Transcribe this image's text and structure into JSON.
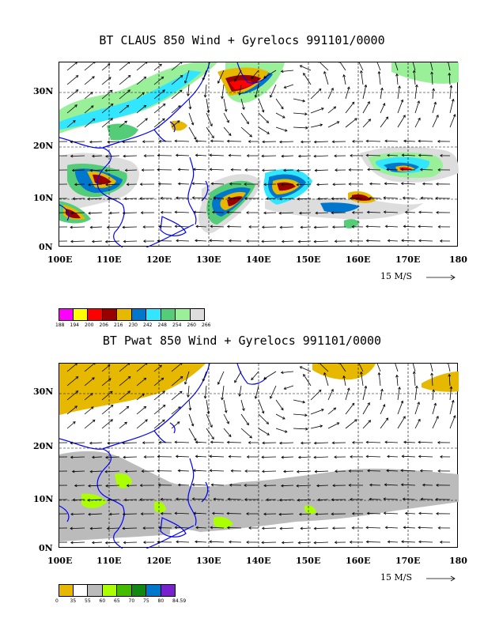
{
  "panel1": {
    "title": "BT CLAUS 850 Wind + Gyrelocs 991101/0000",
    "lat_labels": [
      "30N",
      "20N",
      "10N",
      "0N"
    ],
    "lon_labels": [
      "100E",
      "110E",
      "120E",
      "130E",
      "140E",
      "150E",
      "160E",
      "170E",
      "180"
    ],
    "ref_vector": "15 M/S",
    "colorbar": {
      "colors": [
        "#ff00ff",
        "#ffff00",
        "#ff0000",
        "#990000",
        "#e6b800",
        "#0077cc",
        "#33e6ff",
        "#55cc77",
        "#99f099",
        "#dddddd"
      ],
      "labels": [
        "188",
        "194",
        "200",
        "206",
        "216",
        "230",
        "242",
        "248",
        "254",
        "260",
        "266"
      ]
    }
  },
  "panel2": {
    "title": "BT Pwat 850 Wind + Gyrelocs 991101/0000",
    "lat_labels": [
      "30N",
      "20N",
      "10N",
      "0N"
    ],
    "lon_labels": [
      "100E",
      "110E",
      "120E",
      "130E",
      "140E",
      "150E",
      "160E",
      "170E",
      "180"
    ],
    "ref_vector": "15 M/S",
    "colorbar": {
      "colors": [
        "#e6b800",
        "#ffffff",
        "#bbbbbb",
        "#aaff00",
        "#44bb00",
        "#118811",
        "#0077cc",
        "#7722cc"
      ],
      "labels": [
        "0",
        "35",
        "55",
        "60",
        "65",
        "70",
        "75",
        "80",
        "84.59"
      ]
    }
  },
  "legend_colors": {
    "coast": "#0000ff",
    "arrow": "#000000"
  }
}
